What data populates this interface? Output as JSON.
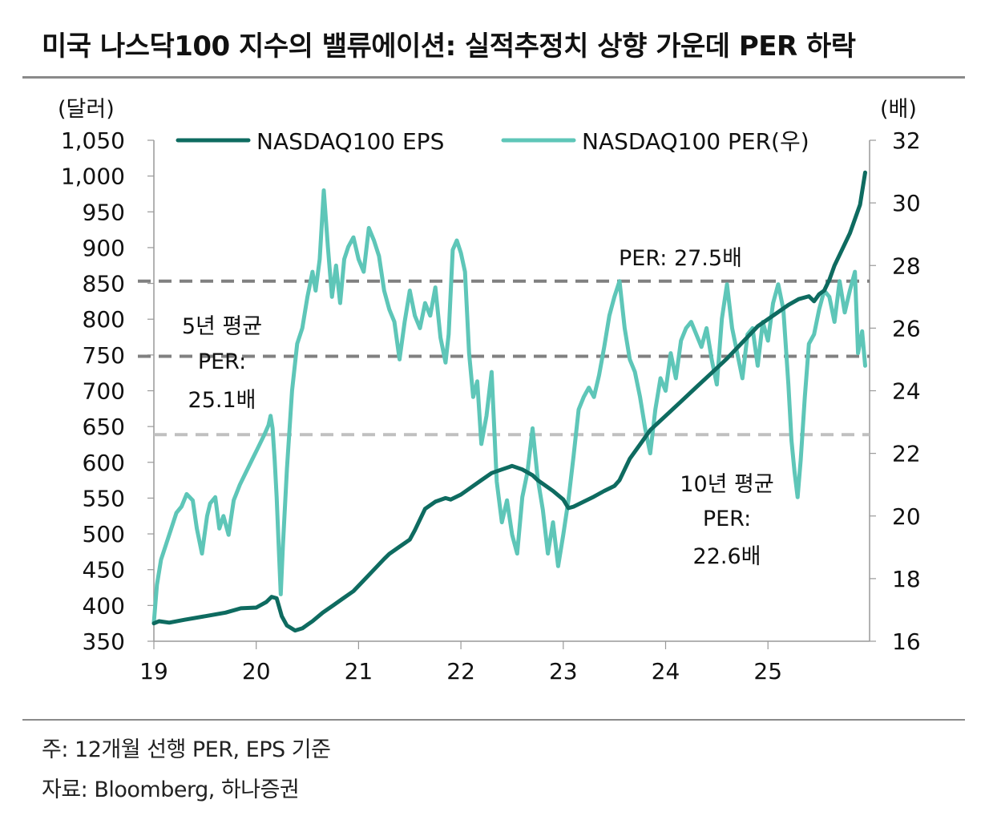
{
  "header": {
    "title": "미국 나스닥100 지수의 밸류에이션: 실적추정치 상향 가운데 PER 하락"
  },
  "footer": {
    "note": "주: 12개월 선행 PER, EPS 기준",
    "source": "자료: Bloomberg, 하나증권"
  },
  "chart_data": {
    "type": "line",
    "title": "미국 나스닥100 지수의 밸류에이션: 실적추정치 상향 가운데 PER 하락",
    "xlabel": "",
    "ylabel_left": "(달러)",
    "ylabel_right": "(배)",
    "x_ticks": [
      2019,
      2020,
      2021,
      2022,
      2023,
      2024,
      2025
    ],
    "x_tick_labels": [
      "19",
      "20",
      "21",
      "22",
      "23",
      "24",
      "25"
    ],
    "xlim": [
      2019.0,
      2025.95
    ],
    "ylim_left": [
      350,
      1050
    ],
    "ylim_right": [
      16,
      32
    ],
    "y_left_ticks": [
      "1,050",
      "1,000",
      "950",
      "900",
      "850",
      "800",
      "750",
      "700",
      "650",
      "600",
      "550",
      "500",
      "450",
      "400",
      "350"
    ],
    "y_left_tick_values": [
      1050,
      1000,
      950,
      900,
      850,
      800,
      750,
      700,
      650,
      600,
      550,
      500,
      450,
      400,
      350
    ],
    "y_right_ticks": [
      "32",
      "30",
      "28",
      "26",
      "24",
      "22",
      "20",
      "18",
      "16"
    ],
    "y_right_tick_values": [
      32,
      30,
      28,
      26,
      24,
      22,
      20,
      18,
      16
    ],
    "grid": false,
    "legend_position": "top",
    "colors": {
      "eps": "#0e6b60",
      "per": "#5ec6b8",
      "ref_dark": "#808080",
      "ref_light": "#c0c0c0",
      "axis": "#999999"
    },
    "series": [
      {
        "name": "NASDAQ100 EPS",
        "axis": "left",
        "x": [
          2019.0,
          2019.05,
          2019.15,
          2019.3,
          2019.5,
          2019.7,
          2019.85,
          2020.0,
          2020.1,
          2020.15,
          2020.2,
          2020.25,
          2020.3,
          2020.38,
          2020.45,
          2020.55,
          2020.65,
          2020.75,
          2020.85,
          2020.95,
          2021.05,
          2021.15,
          2021.25,
          2021.3,
          2021.4,
          2021.5,
          2021.55,
          2021.6,
          2021.65,
          2021.75,
          2021.85,
          2021.9,
          2022.0,
          2022.1,
          2022.2,
          2022.3,
          2022.4,
          2022.5,
          2022.6,
          2022.7,
          2022.75,
          2022.8,
          2022.9,
          2023.0,
          2023.05,
          2023.1,
          2023.2,
          2023.3,
          2023.4,
          2023.5,
          2023.55,
          2023.6,
          2023.65,
          2023.75,
          2023.85,
          2024.0,
          2024.15,
          2024.3,
          2024.45,
          2024.6,
          2024.7,
          2024.8,
          2024.9,
          2025.0,
          2025.1,
          2025.2,
          2025.3,
          2025.4,
          2025.45,
          2025.5,
          2025.55,
          2025.6,
          2025.65,
          2025.7,
          2025.8,
          2025.9,
          2025.95
        ],
        "values": [
          375,
          378,
          376,
          380,
          385,
          390,
          396,
          397,
          405,
          412,
          410,
          385,
          372,
          365,
          368,
          378,
          390,
          400,
          410,
          420,
          435,
          450,
          465,
          472,
          482,
          492,
          505,
          520,
          535,
          545,
          550,
          548,
          555,
          565,
          575,
          585,
          590,
          595,
          590,
          582,
          575,
          570,
          560,
          548,
          536,
          538,
          545,
          552,
          560,
          567,
          575,
          590,
          605,
          625,
          645,
          665,
          685,
          705,
          725,
          745,
          760,
          775,
          790,
          800,
          810,
          820,
          828,
          832,
          825,
          835,
          840,
          855,
          875,
          890,
          920,
          960,
          1005
        ]
      },
      {
        "name": "NASDAQ100 PER(우)",
        "axis": "right",
        "x": [
          2019.0,
          2019.03,
          2019.07,
          2019.12,
          2019.17,
          2019.22,
          2019.27,
          2019.32,
          2019.38,
          2019.42,
          2019.47,
          2019.52,
          2019.55,
          2019.6,
          2019.64,
          2019.68,
          2019.73,
          2019.78,
          2019.84,
          2019.9,
          2019.96,
          2020.02,
          2020.08,
          2020.12,
          2020.14,
          2020.16,
          2020.18,
          2020.2,
          2020.22,
          2020.24,
          2020.26,
          2020.3,
          2020.35,
          2020.4,
          2020.45,
          2020.5,
          2020.55,
          2020.58,
          2020.62,
          2020.66,
          2020.7,
          2020.74,
          2020.78,
          2020.82,
          2020.86,
          2020.9,
          2020.95,
          2021.0,
          2021.05,
          2021.1,
          2021.15,
          2021.2,
          2021.25,
          2021.3,
          2021.35,
          2021.4,
          2021.45,
          2021.5,
          2021.55,
          2021.6,
          2021.65,
          2021.7,
          2021.75,
          2021.8,
          2021.85,
          2021.88,
          2021.92,
          2021.96,
          2022.0,
          2022.04,
          2022.08,
          2022.12,
          2022.16,
          2022.2,
          2022.25,
          2022.3,
          2022.35,
          2022.4,
          2022.45,
          2022.5,
          2022.55,
          2022.6,
          2022.65,
          2022.7,
          2022.75,
          2022.8,
          2022.85,
          2022.9,
          2022.95,
          2023.0,
          2023.05,
          2023.1,
          2023.15,
          2023.2,
          2023.25,
          2023.3,
          2023.35,
          2023.4,
          2023.45,
          2023.5,
          2023.55,
          2023.6,
          2023.65,
          2023.7,
          2023.75,
          2023.8,
          2023.85,
          2023.9,
          2023.95,
          2024.0,
          2024.05,
          2024.1,
          2024.15,
          2024.2,
          2024.25,
          2024.3,
          2024.35,
          2024.4,
          2024.45,
          2024.5,
          2024.55,
          2024.6,
          2024.65,
          2024.7,
          2024.75,
          2024.8,
          2024.85,
          2024.9,
          2024.95,
          2025.0,
          2025.05,
          2025.1,
          2025.15,
          2025.2,
          2025.23,
          2025.26,
          2025.29,
          2025.32,
          2025.36,
          2025.4,
          2025.45,
          2025.5,
          2025.55,
          2025.6,
          2025.65,
          2025.7,
          2025.75,
          2025.8,
          2025.85,
          2025.88,
          2025.92,
          2025.95
        ],
        "values": [
          16.6,
          17.8,
          18.6,
          19.1,
          19.6,
          20.1,
          20.3,
          20.7,
          20.5,
          19.6,
          18.8,
          20.0,
          20.4,
          20.6,
          19.6,
          20.0,
          19.4,
          20.5,
          21.0,
          21.4,
          21.8,
          22.2,
          22.6,
          22.9,
          23.2,
          22.8,
          21.8,
          20.6,
          19.0,
          17.5,
          19.0,
          21.5,
          24.0,
          25.5,
          26.0,
          27.0,
          27.8,
          27.2,
          28.2,
          30.4,
          28.6,
          27.0,
          28.0,
          26.8,
          28.2,
          28.6,
          28.9,
          28.2,
          27.8,
          29.2,
          28.8,
          28.3,
          27.2,
          26.6,
          26.2,
          25.0,
          26.2,
          27.2,
          26.4,
          26.0,
          26.8,
          26.4,
          27.3,
          25.7,
          24.9,
          25.8,
          28.5,
          28.8,
          28.4,
          27.8,
          25.2,
          23.8,
          24.3,
          22.3,
          23.2,
          24.6,
          21.1,
          19.8,
          20.5,
          19.4,
          18.8,
          20.6,
          21.4,
          22.8,
          21.2,
          20.2,
          18.8,
          19.8,
          18.4,
          19.4,
          20.5,
          21.9,
          23.4,
          23.8,
          24.1,
          23.8,
          24.5,
          25.4,
          26.4,
          27.0,
          27.5,
          26.0,
          25.0,
          24.6,
          23.8,
          22.8,
          22.0,
          23.4,
          24.4,
          24.0,
          25.2,
          24.4,
          25.6,
          26.0,
          26.2,
          25.8,
          25.4,
          26.0,
          25.0,
          24.2,
          26.3,
          27.4,
          26.0,
          25.2,
          24.4,
          25.8,
          26.0,
          24.8,
          26.2,
          25.6,
          26.8,
          27.4,
          26.6,
          24.2,
          22.4,
          21.4,
          20.6,
          21.8,
          23.8,
          25.5,
          25.8,
          26.6,
          27.2,
          27.0,
          26.2,
          27.5,
          26.5,
          27.2,
          27.8,
          25.2,
          25.9,
          24.8
        ]
      }
    ],
    "reference_lines": [
      {
        "axis": "right",
        "value": 27.5,
        "label": "PER: 27.5배",
        "style": "dark-dashed"
      },
      {
        "axis": "right",
        "value": 25.1,
        "label": "5년 평균 PER: 25.1배",
        "style": "dark-dashed"
      },
      {
        "axis": "right",
        "value": 22.6,
        "label": "10년 평균 PER: 22.6배",
        "style": "light-dashed"
      }
    ],
    "annotations": {
      "per_current": "PER: 27.5배",
      "avg5_line1": "5년 평균",
      "avg5_line2": "PER:",
      "avg5_line3": "25.1배",
      "avg10_line1": "10년 평균",
      "avg10_line2": "PER:",
      "avg10_line3": "22.6배"
    }
  }
}
